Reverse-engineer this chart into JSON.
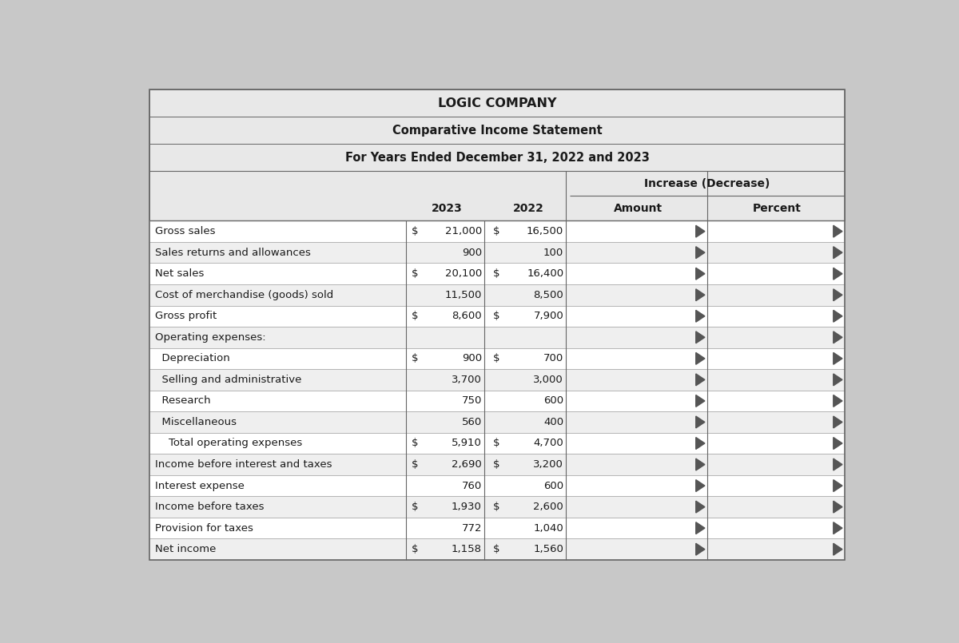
{
  "title1": "LOGIC COMPANY",
  "title2": "Comparative Income Statement",
  "title3": "For Years Ended December 31, 2022 and 2023",
  "increase_decrease_label": "Increase (Decrease)",
  "rows": [
    {
      "label": "Gross sales",
      "indent": 0,
      "has_dollar_2023": true,
      "val_2023": "21,000",
      "has_dollar_2022": true,
      "val_2022": "16,500"
    },
    {
      "label": "Sales returns and allowances",
      "indent": 0,
      "has_dollar_2023": false,
      "val_2023": "900",
      "has_dollar_2022": false,
      "val_2022": "100"
    },
    {
      "label": "Net sales",
      "indent": 0,
      "has_dollar_2023": true,
      "val_2023": "20,100",
      "has_dollar_2022": true,
      "val_2022": "16,400"
    },
    {
      "label": "Cost of merchandise (goods) sold",
      "indent": 0,
      "has_dollar_2023": false,
      "val_2023": "11,500",
      "has_dollar_2022": false,
      "val_2022": "8,500"
    },
    {
      "label": "Gross profit",
      "indent": 0,
      "has_dollar_2023": true,
      "val_2023": "8,600",
      "has_dollar_2022": true,
      "val_2022": "7,900"
    },
    {
      "label": "Operating expenses:",
      "indent": 0,
      "has_dollar_2023": false,
      "val_2023": "",
      "has_dollar_2022": false,
      "val_2022": ""
    },
    {
      "label": "  Depreciation",
      "indent": 1,
      "has_dollar_2023": true,
      "val_2023": "900",
      "has_dollar_2022": true,
      "val_2022": "700"
    },
    {
      "label": "  Selling and administrative",
      "indent": 1,
      "has_dollar_2023": false,
      "val_2023": "3,700",
      "has_dollar_2022": false,
      "val_2022": "3,000"
    },
    {
      "label": "  Research",
      "indent": 1,
      "has_dollar_2023": false,
      "val_2023": "750",
      "has_dollar_2022": false,
      "val_2022": "600"
    },
    {
      "label": "  Miscellaneous",
      "indent": 1,
      "has_dollar_2023": false,
      "val_2023": "560",
      "has_dollar_2022": false,
      "val_2022": "400"
    },
    {
      "label": "    Total operating expenses",
      "indent": 2,
      "has_dollar_2023": true,
      "val_2023": "5,910",
      "has_dollar_2022": true,
      "val_2022": "4,700"
    },
    {
      "label": "Income before interest and taxes",
      "indent": 0,
      "has_dollar_2023": true,
      "val_2023": "2,690",
      "has_dollar_2022": true,
      "val_2022": "3,200"
    },
    {
      "label": "Interest expense",
      "indent": 0,
      "has_dollar_2023": false,
      "val_2023": "760",
      "has_dollar_2022": false,
      "val_2022": "600"
    },
    {
      "label": "Income before taxes",
      "indent": 0,
      "has_dollar_2023": true,
      "val_2023": "1,930",
      "has_dollar_2022": true,
      "val_2022": "2,600"
    },
    {
      "label": "Provision for taxes",
      "indent": 0,
      "has_dollar_2023": false,
      "val_2023": "772",
      "has_dollar_2022": false,
      "val_2022": "1,040"
    },
    {
      "label": "Net income",
      "indent": 0,
      "has_dollar_2023": true,
      "val_2023": "1,158",
      "has_dollar_2022": true,
      "val_2022": "1,560"
    }
  ],
  "outer_bg": "#c8c8c8",
  "table_bg": "#e8e8e8",
  "row_bg_white": "#ffffff",
  "row_bg_gray": "#dcdcdc",
  "header_bg": "#c8c8c8",
  "border_color": "#666666",
  "text_color": "#1a1a1a",
  "font_size": 9.5,
  "header_font_size": 10.0,
  "title_font_size_1": 11.5,
  "title_font_size_2": 10.5,
  "title_font_size_3": 10.5
}
